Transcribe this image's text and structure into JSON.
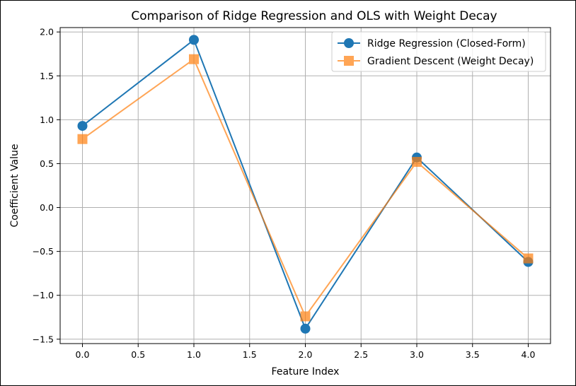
{
  "chart_data": {
    "type": "line",
    "title": "Comparison of Ridge Regression and OLS with Weight Decay",
    "xlabel": "Feature Index",
    "ylabel": "Coefficient Value",
    "x": [
      0,
      1,
      2,
      3,
      4
    ],
    "xlim": [
      -0.2,
      4.2
    ],
    "ylim": [
      -1.55,
      2.05
    ],
    "xticks": [
      "0.0",
      "0.5",
      "1.0",
      "1.5",
      "2.0",
      "2.5",
      "3.0",
      "3.5",
      "4.0"
    ],
    "xtick_values": [
      0,
      0.5,
      1,
      1.5,
      2,
      2.5,
      3,
      3.5,
      4
    ],
    "yticks": [
      "−1.5",
      "−1.0",
      "−0.5",
      "0.0",
      "0.5",
      "1.0",
      "1.5",
      "2.0"
    ],
    "ytick_values": [
      -1.5,
      -1.0,
      -0.5,
      0.0,
      0.5,
      1.0,
      1.5,
      2.0
    ],
    "grid": true,
    "legend_position": "top-right",
    "series": [
      {
        "name": "Ridge Regression (Closed-Form)",
        "values": [
          0.93,
          1.91,
          -1.38,
          0.57,
          -0.62
        ],
        "color": "#1f77b4",
        "marker": "circle"
      },
      {
        "name": "Gradient Descent (Weight Decay)",
        "values": [
          0.78,
          1.69,
          -1.24,
          0.52,
          -0.58
        ],
        "color": "#ff7f0e",
        "marker": "square",
        "opacity": 0.7
      }
    ]
  }
}
